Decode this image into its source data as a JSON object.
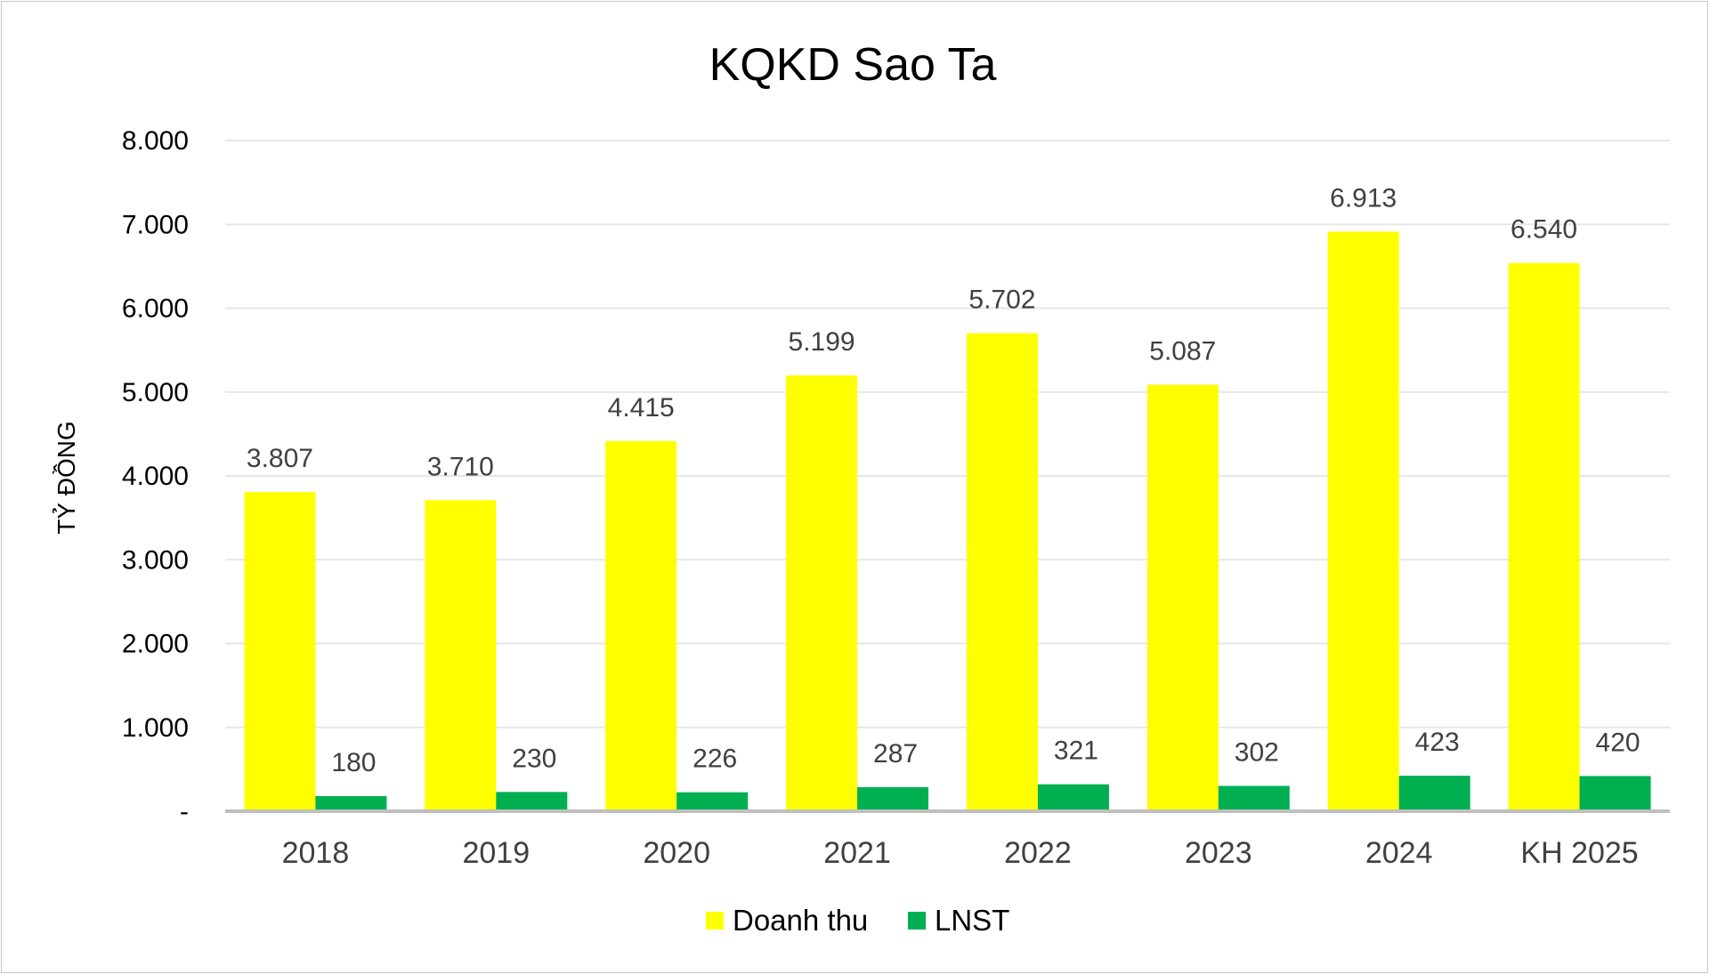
{
  "chart_data": {
    "type": "bar",
    "title": "KQKD Sao Ta",
    "xlabel": "",
    "ylabel": "TỶ ĐỒNG",
    "categories": [
      "2018",
      "2019",
      "2020",
      "2021",
      "2022",
      "2023",
      "2024",
      "KH 2025"
    ],
    "ylim": [
      0,
      8000
    ],
    "yticks": [
      0,
      1000,
      2000,
      3000,
      4000,
      5000,
      6000,
      7000,
      8000
    ],
    "ytick_labels": [
      "-",
      "1.000",
      "2.000",
      "3.000",
      "4.000",
      "5.000",
      "6.000",
      "7.000",
      "8.000"
    ],
    "grid": true,
    "legend_position": "bottom",
    "series": [
      {
        "name": "Doanh thu",
        "color": "#FFFF00",
        "values": [
          3807,
          3710,
          4415,
          5199,
          5702,
          5087,
          6913,
          6540
        ],
        "labels": [
          "3.807",
          "3.710",
          "4.415",
          "5.199",
          "5.702",
          "5.087",
          "6.913",
          "6.540"
        ]
      },
      {
        "name": "LNST",
        "color": "#00B050",
        "values": [
          180,
          230,
          226,
          287,
          321,
          302,
          423,
          420
        ],
        "labels": [
          "180",
          "230",
          "226",
          "287",
          "321",
          "302",
          "423",
          "420"
        ]
      }
    ]
  }
}
